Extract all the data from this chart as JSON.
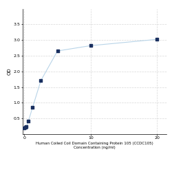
{
  "x": [
    0,
    0.156,
    0.313,
    0.625,
    1.25,
    2.5,
    5,
    10,
    20
  ],
  "y": [
    0.198,
    0.214,
    0.232,
    0.425,
    0.86,
    1.71,
    2.65,
    2.82,
    3.02
  ],
  "line_color": "#b8d4e8",
  "marker_color": "#1a3060",
  "marker_size": 3,
  "line_width": 0.8,
  "xlabel_line1": "Human Coiled Coil Domain Containing Protein 105 (CCDC105)",
  "xlabel_line2": "Concentration (ng/ml)",
  "ylabel": "OD",
  "xlim": [
    -0.3,
    21.5
  ],
  "ylim": [
    0,
    4.0
  ],
  "yticks": [
    0.5,
    1.0,
    1.5,
    2.0,
    2.5,
    3.0,
    3.5
  ],
  "xticks": [
    0,
    10,
    20
  ],
  "grid_color": "#d8d8d8",
  "background_color": "#ffffff",
  "xlabel_fontsize": 4.0,
  "ylabel_fontsize": 5.0,
  "tick_fontsize": 4.5
}
